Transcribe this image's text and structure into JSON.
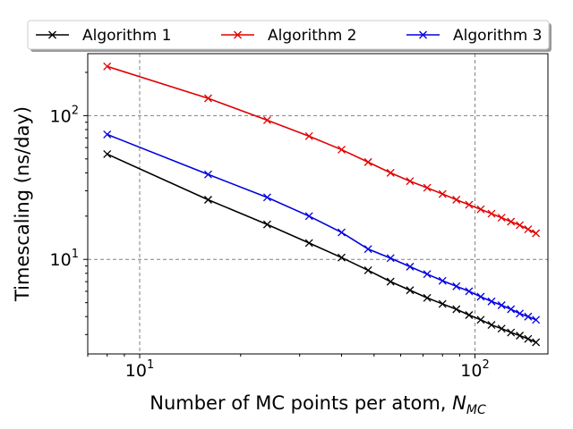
{
  "chart_data": {
    "type": "line",
    "xscale": "log",
    "yscale": "log",
    "xlim": [
      7,
      165
    ],
    "ylim": [
      2.2,
      270
    ],
    "xticks": [
      {
        "value": 10,
        "base": "10",
        "exp": "1"
      },
      {
        "value": 100,
        "base": "10",
        "exp": "2"
      }
    ],
    "yticks": [
      {
        "value": 10,
        "base": "10",
        "exp": "1"
      },
      {
        "value": 100,
        "base": "10",
        "exp": "2"
      }
    ],
    "xlabel": {
      "text": "Number of MC points per atom, ",
      "symbol": "N",
      "subscript": "MC"
    },
    "ylabel": "Timescaling (ns/day)",
    "grid": true,
    "legend_position": "top",
    "x": [
      8,
      16,
      24,
      32,
      40,
      48,
      56,
      64,
      72,
      80,
      88,
      96,
      104,
      112,
      120,
      128,
      136,
      144,
      152
    ],
    "series": [
      {
        "name": "Algorithm 1",
        "color": "#000000",
        "marker": "x",
        "values": [
          54,
          26,
          17.5,
          13,
          10.3,
          8.4,
          7.0,
          6.1,
          5.4,
          4.9,
          4.5,
          4.1,
          3.8,
          3.5,
          3.3,
          3.1,
          2.95,
          2.8,
          2.65
        ]
      },
      {
        "name": "Algorithm 2",
        "color": "#e00000",
        "marker": "x",
        "values": [
          220,
          132,
          93,
          72,
          58,
          47.5,
          40,
          35,
          31.5,
          28.5,
          26,
          24,
          22.3,
          20.8,
          19.5,
          18.3,
          17.3,
          16.2,
          15.2
        ]
      },
      {
        "name": "Algorithm 3",
        "color": "#0000e0",
        "marker": "x",
        "values": [
          74,
          39,
          27,
          20,
          15.4,
          11.8,
          10.2,
          8.9,
          7.9,
          7.1,
          6.5,
          6.0,
          5.5,
          5.1,
          4.8,
          4.5,
          4.2,
          4.0,
          3.8
        ]
      }
    ]
  }
}
